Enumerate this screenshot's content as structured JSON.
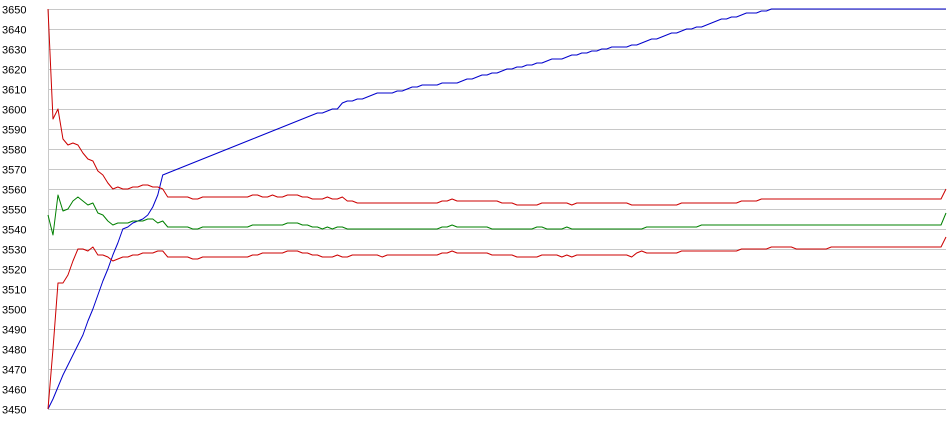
{
  "chart_data": {
    "type": "line",
    "title": "",
    "xlabel": "",
    "ylabel": "",
    "ylim": [
      3450,
      3650
    ],
    "yticks": [
      3450,
      3460,
      3470,
      3480,
      3490,
      3500,
      3510,
      3520,
      3530,
      3540,
      3550,
      3560,
      3570,
      3580,
      3590,
      3600,
      3610,
      3620,
      3630,
      3640,
      3650
    ],
    "grid": true,
    "legend": "none",
    "x": [
      0,
      1,
      2,
      3,
      4,
      5,
      6,
      7,
      8,
      9,
      10,
      11,
      12,
      13,
      14,
      15,
      16,
      17,
      18,
      19,
      20,
      21,
      22,
      23,
      24,
      25,
      26,
      27,
      28,
      29,
      30,
      31,
      32,
      33,
      34,
      35,
      36,
      37,
      38,
      39,
      40,
      41,
      42,
      43,
      44,
      45,
      46,
      47,
      48,
      49,
      50,
      51,
      52,
      53,
      54,
      55,
      56,
      57,
      58,
      59,
      60,
      61,
      62,
      63,
      64,
      65,
      66,
      67,
      68,
      69,
      70,
      71,
      72,
      73,
      74,
      75,
      76,
      77,
      78,
      79,
      80,
      81,
      82,
      83,
      84,
      85,
      86,
      87,
      88,
      89,
      90,
      91,
      92,
      93,
      94,
      95,
      96,
      97,
      98,
      99,
      100,
      101,
      102,
      103,
      104,
      105,
      106,
      107,
      108,
      109,
      110,
      111,
      112,
      113,
      114,
      115,
      116,
      117,
      118,
      119,
      120,
      121,
      122,
      123,
      124,
      125,
      126,
      127,
      128,
      129,
      130,
      131,
      132,
      133,
      134,
      135,
      136,
      137,
      138,
      139,
      140,
      141,
      142,
      143,
      144,
      145,
      146,
      147,
      148,
      149,
      150,
      151,
      152,
      153,
      154,
      155,
      156,
      157,
      158,
      159,
      160,
      161,
      162,
      163,
      164,
      165,
      166,
      167,
      168,
      169,
      170,
      171,
      172,
      173,
      174,
      175,
      176,
      177,
      178,
      179,
      180
    ],
    "series": [
      {
        "color": "#0000cc",
        "values": [
          3450,
          3455,
          3461,
          3467,
          3472,
          3477,
          3482,
          3487,
          3494,
          3500,
          3507,
          3514,
          3520,
          3527,
          3533,
          3540,
          3541,
          3543,
          3544,
          3545,
          3547,
          3551,
          3557,
          3567,
          3568,
          3569,
          3570,
          3571,
          3572,
          3573,
          3574,
          3575,
          3576,
          3577,
          3578,
          3579,
          3580,
          3581,
          3582,
          3583,
          3584,
          3585,
          3586,
          3587,
          3588,
          3589,
          3590,
          3591,
          3592,
          3593,
          3594,
          3595,
          3596,
          3597,
          3598,
          3598,
          3599,
          3600,
          3600,
          3603,
          3604,
          3604,
          3605,
          3605,
          3606,
          3607,
          3608,
          3608,
          3608,
          3608,
          3609,
          3609,
          3610,
          3611,
          3611,
          3612,
          3612,
          3612,
          3612,
          3613,
          3613,
          3613,
          3613,
          3614,
          3615,
          3615,
          3616,
          3617,
          3617,
          3618,
          3618,
          3619,
          3620,
          3620,
          3621,
          3621,
          3622,
          3622,
          3623,
          3623,
          3624,
          3625,
          3625,
          3625,
          3626,
          3627,
          3627,
          3628,
          3628,
          3629,
          3629,
          3630,
          3630,
          3631,
          3631,
          3631,
          3631,
          3632,
          3632,
          3633,
          3634,
          3635,
          3635,
          3636,
          3637,
          3638,
          3638,
          3639,
          3640,
          3640,
          3641,
          3641,
          3642,
          3643,
          3644,
          3645,
          3645,
          3646,
          3646,
          3647,
          3648,
          3648,
          3648,
          3649,
          3649,
          3650,
          3650,
          3650,
          3650,
          3650,
          3650,
          3650,
          3650,
          3650,
          3650,
          3650,
          3650,
          3650,
          3650,
          3650,
          3650,
          3650,
          3650,
          3650,
          3650,
          3650,
          3650,
          3650,
          3650,
          3650,
          3650,
          3650,
          3650,
          3650,
          3650,
          3650,
          3650,
          3650,
          3650,
          3650,
          3650
        ]
      },
      {
        "color": "#cc0000",
        "values": [
          3650,
          3595,
          3600,
          3585,
          3582,
          3583,
          3582,
          3578,
          3575,
          3574,
          3569,
          3567,
          3563,
          3560,
          3561,
          3560,
          3560,
          3561,
          3561,
          3562,
          3562,
          3561,
          3561,
          3560,
          3556,
          3556,
          3556,
          3556,
          3556,
          3555,
          3555,
          3556,
          3556,
          3556,
          3556,
          3556,
          3556,
          3556,
          3556,
          3556,
          3556,
          3557,
          3557,
          3556,
          3556,
          3557,
          3556,
          3556,
          3557,
          3557,
          3557,
          3556,
          3556,
          3555,
          3555,
          3555,
          3556,
          3555,
          3555,
          3556,
          3554,
          3554,
          3553,
          3553,
          3553,
          3553,
          3553,
          3553,
          3553,
          3553,
          3553,
          3553,
          3553,
          3553,
          3553,
          3553,
          3553,
          3553,
          3553,
          3554,
          3554,
          3555,
          3554,
          3554,
          3554,
          3554,
          3554,
          3554,
          3554,
          3554,
          3554,
          3553,
          3553,
          3553,
          3552,
          3552,
          3552,
          3552,
          3552,
          3553,
          3553,
          3553,
          3553,
          3553,
          3553,
          3552,
          3553,
          3553,
          3553,
          3553,
          3553,
          3553,
          3553,
          3553,
          3553,
          3553,
          3553,
          3552,
          3552,
          3552,
          3552,
          3552,
          3552,
          3552,
          3552,
          3552,
          3552,
          3553,
          3553,
          3553,
          3553,
          3553,
          3553,
          3553,
          3553,
          3553,
          3553,
          3553,
          3553,
          3554,
          3554,
          3554,
          3554,
          3555,
          3555,
          3555,
          3555,
          3555,
          3555,
          3555,
          3555,
          3555,
          3555,
          3555,
          3555,
          3555,
          3555,
          3555,
          3555,
          3555,
          3555,
          3555,
          3555,
          3555,
          3555,
          3555,
          3555,
          3555,
          3555,
          3555,
          3555,
          3555,
          3555,
          3555,
          3555,
          3555,
          3555,
          3555,
          3555,
          3555,
          3560
        ]
      },
      {
        "color": "#008000",
        "values": [
          3547,
          3537,
          3557,
          3549,
          3550,
          3554,
          3556,
          3554,
          3552,
          3553,
          3548,
          3547,
          3544,
          3542,
          3543,
          3543,
          3543,
          3544,
          3544,
          3544,
          3545,
          3545,
          3543,
          3544,
          3541,
          3541,
          3541,
          3541,
          3541,
          3540,
          3540,
          3541,
          3541,
          3541,
          3541,
          3541,
          3541,
          3541,
          3541,
          3541,
          3541,
          3542,
          3542,
          3542,
          3542,
          3542,
          3542,
          3542,
          3543,
          3543,
          3543,
          3542,
          3542,
          3541,
          3541,
          3540,
          3541,
          3540,
          3541,
          3541,
          3540,
          3540,
          3540,
          3540,
          3540,
          3540,
          3540,
          3540,
          3540,
          3540,
          3540,
          3540,
          3540,
          3540,
          3540,
          3540,
          3540,
          3540,
          3540,
          3541,
          3541,
          3542,
          3541,
          3541,
          3541,
          3541,
          3541,
          3541,
          3541,
          3540,
          3540,
          3540,
          3540,
          3540,
          3540,
          3540,
          3540,
          3540,
          3541,
          3541,
          3540,
          3540,
          3540,
          3540,
          3541,
          3540,
          3540,
          3540,
          3540,
          3540,
          3540,
          3540,
          3540,
          3540,
          3540,
          3540,
          3540,
          3540,
          3540,
          3540,
          3541,
          3541,
          3541,
          3541,
          3541,
          3541,
          3541,
          3541,
          3541,
          3541,
          3541,
          3542,
          3542,
          3542,
          3542,
          3542,
          3542,
          3542,
          3542,
          3542,
          3542,
          3542,
          3542,
          3542,
          3542,
          3542,
          3542,
          3542,
          3542,
          3542,
          3542,
          3542,
          3542,
          3542,
          3542,
          3542,
          3542,
          3542,
          3542,
          3542,
          3542,
          3542,
          3542,
          3542,
          3542,
          3542,
          3542,
          3542,
          3542,
          3542,
          3542,
          3542,
          3542,
          3542,
          3542,
          3542,
          3542,
          3542,
          3542,
          3542,
          3548
        ]
      },
      {
        "color": "#cc0000",
        "values": [
          3450,
          3480,
          3513,
          3513,
          3517,
          3524,
          3530,
          3530,
          3529,
          3531,
          3527,
          3527,
          3526,
          3524,
          3525,
          3526,
          3526,
          3527,
          3527,
          3528,
          3528,
          3528,
          3529,
          3529,
          3526,
          3526,
          3526,
          3526,
          3526,
          3525,
          3525,
          3526,
          3526,
          3526,
          3526,
          3526,
          3526,
          3526,
          3526,
          3526,
          3526,
          3527,
          3527,
          3528,
          3528,
          3528,
          3528,
          3528,
          3529,
          3529,
          3529,
          3528,
          3528,
          3527,
          3527,
          3526,
          3526,
          3526,
          3527,
          3526,
          3526,
          3527,
          3527,
          3527,
          3527,
          3527,
          3527,
          3526,
          3527,
          3527,
          3527,
          3527,
          3527,
          3527,
          3527,
          3527,
          3527,
          3527,
          3527,
          3528,
          3528,
          3529,
          3528,
          3528,
          3528,
          3528,
          3528,
          3528,
          3528,
          3527,
          3527,
          3527,
          3527,
          3527,
          3526,
          3526,
          3526,
          3526,
          3526,
          3527,
          3527,
          3527,
          3527,
          3526,
          3527,
          3526,
          3527,
          3527,
          3527,
          3527,
          3527,
          3527,
          3527,
          3527,
          3527,
          3527,
          3527,
          3526,
          3528,
          3529,
          3528,
          3528,
          3528,
          3528,
          3528,
          3528,
          3528,
          3529,
          3529,
          3529,
          3529,
          3529,
          3529,
          3529,
          3529,
          3529,
          3529,
          3529,
          3529,
          3530,
          3530,
          3530,
          3530,
          3530,
          3530,
          3531,
          3531,
          3531,
          3531,
          3531,
          3530,
          3530,
          3530,
          3530,
          3530,
          3530,
          3530,
          3531,
          3531,
          3531,
          3531,
          3531,
          3531,
          3531,
          3531,
          3531,
          3531,
          3531,
          3531,
          3531,
          3531,
          3531,
          3531,
          3531,
          3531,
          3531,
          3531,
          3531,
          3531,
          3531,
          3536
        ]
      }
    ]
  }
}
